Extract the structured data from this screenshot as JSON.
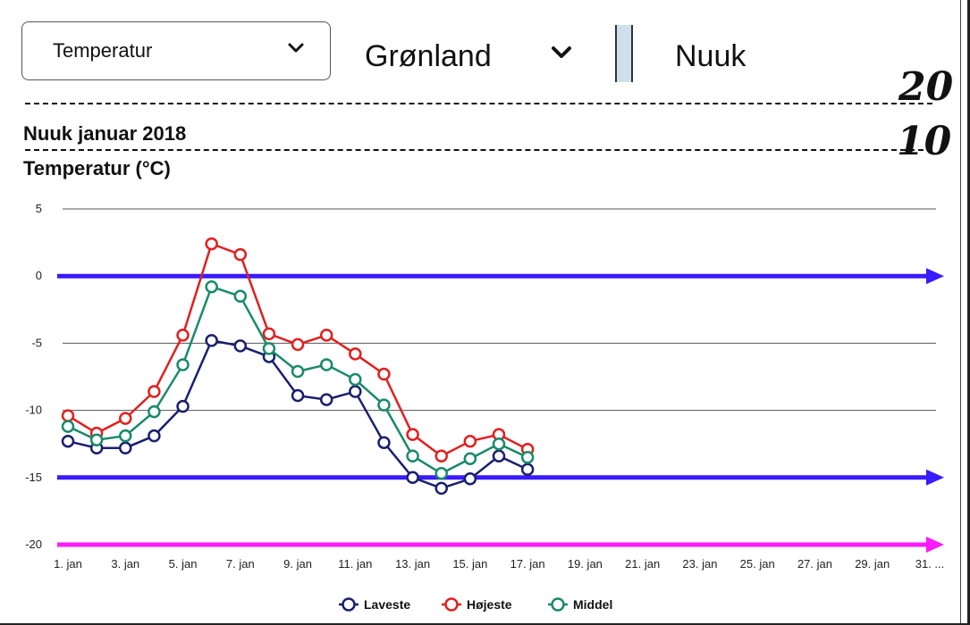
{
  "controls": {
    "measure_select": "Temperatur",
    "region_select": "Grønland",
    "city": "Nuuk"
  },
  "annotations": {
    "hand_20": "20",
    "hand_10": "10"
  },
  "colors": {
    "laveste": "#1a1f6e",
    "hojeste": "#e02020",
    "middel": "#1a8a6a",
    "arrow_blue": "#3a1aff",
    "arrow_magenta": "#ff1aff",
    "grid": "#555555"
  },
  "chart_data": {
    "type": "line",
    "title": "Nuuk januar 2018",
    "ylabel": "Temperatur (°C)",
    "xlabel": "",
    "ylim": [
      -20,
      5
    ],
    "yticks": [
      5,
      0,
      -5,
      -10,
      -15,
      -20
    ],
    "xlim": [
      1,
      31
    ],
    "xticks": [
      1,
      3,
      5,
      7,
      9,
      11,
      13,
      15,
      17,
      19,
      21,
      23,
      25,
      27,
      29,
      31
    ],
    "xtick_labels": [
      "1. jan",
      "3. jan",
      "5. jan",
      "7. jan",
      "9. jan",
      "11. jan",
      "13. jan",
      "15. jan",
      "17. jan",
      "19. jan",
      "21. jan",
      "23. jan",
      "25. jan",
      "27. jan",
      "29. jan",
      "31. ..."
    ],
    "grid": true,
    "legend_position": "bottom",
    "x": [
      1,
      2,
      3,
      4,
      5,
      6,
      7,
      8,
      9,
      10,
      11,
      12,
      13,
      14,
      15,
      16,
      17
    ],
    "series": [
      {
        "name": "Laveste",
        "color": "#1a1f6e",
        "values": [
          -12.3,
          -12.8,
          -12.8,
          -11.9,
          -9.7,
          -4.8,
          -5.2,
          -6.0,
          -8.9,
          -9.2,
          -8.6,
          -12.4,
          -15.0,
          -15.8,
          -15.1,
          -13.4,
          -14.4
        ]
      },
      {
        "name": "Højeste",
        "color": "#e02020",
        "values": [
          -10.4,
          -11.7,
          -10.6,
          -8.6,
          -4.4,
          2.4,
          1.6,
          -4.3,
          -5.1,
          -4.4,
          -5.8,
          -7.3,
          -11.8,
          -13.4,
          -12.3,
          -11.8,
          -12.9
        ]
      },
      {
        "name": "Middel",
        "color": "#1a8a6a",
        "values": [
          -11.2,
          -12.2,
          -11.9,
          -10.1,
          -6.6,
          -0.8,
          -1.5,
          -5.4,
          -7.1,
          -6.6,
          -7.7,
          -9.6,
          -13.4,
          -14.7,
          -13.6,
          -12.5,
          -13.5
        ]
      }
    ],
    "overlays": [
      {
        "label": "arrow",
        "y": 0,
        "color": "#3a1aff"
      },
      {
        "label": "arrow",
        "y": -15,
        "color": "#3a1aff"
      },
      {
        "label": "arrow",
        "y": -20,
        "color": "#ff1aff"
      }
    ]
  }
}
